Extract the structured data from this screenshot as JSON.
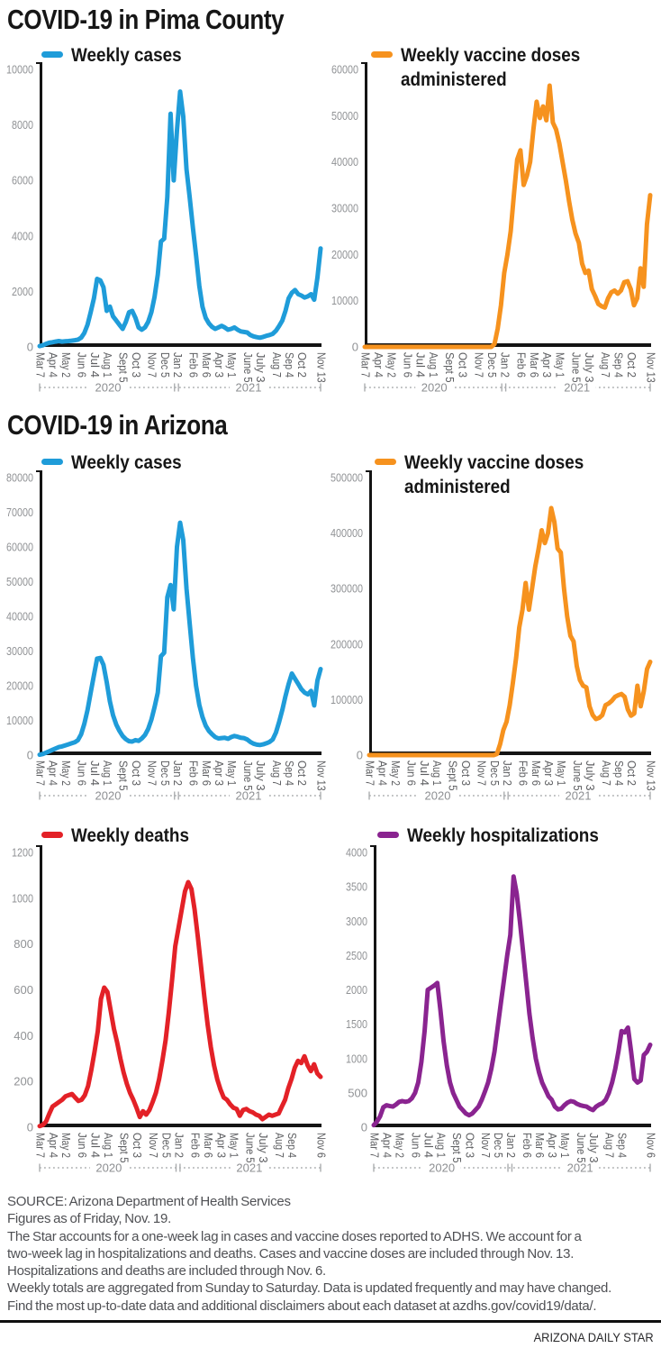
{
  "page": {
    "section1_title": "COVID-19 in Pima County",
    "section2_title": "COVID-19 in Arizona",
    "footer": {
      "source_line1": "SOURCE: Arizona Department of Health Services",
      "source_line2": "Figures as of Friday, Nov. 19.",
      "note1": [
        "The Star accounts for a one-week lag in cases and vaccine doses reported to ADHS. We account for a",
        "two-week lag in hospitalizations and deaths. Cases and vaccine doses are included through Nov. 13.",
        "Hospitalizations and deaths are included through Nov. 6."
      ],
      "note2": [
        "Weekly totals are aggregated from Sunday to Saturday. Data is updated frequently and may have changed.",
        "Find the most up-to-date data and additional disclaimers about each dataset at azdhs.gov/covid19/data/."
      ],
      "credit": "ARIZONA DAILY STAR"
    }
  },
  "chart_data": [
    {
      "id": "pima-cases",
      "type": "line",
      "region": "Pima County",
      "legend": "Weekly cases",
      "color": "#1f9cd9",
      "ylim": [
        0,
        10000
      ],
      "yticks": [
        0,
        2000,
        4000,
        6000,
        8000,
        10000
      ],
      "x_start": "Mar 7 2020",
      "x_end": "Nov 13 2021",
      "xtick_idx": [
        0,
        4,
        8,
        13,
        17,
        21,
        26,
        30,
        35,
        39,
        43,
        48,
        52,
        56,
        60,
        65,
        69,
        74,
        78,
        82,
        88
      ],
      "xtick_labels": [
        "Mar 7",
        "Apr 4",
        "May 2",
        "Jun 6",
        "Jul 4",
        "Aug 1",
        "Sept 5",
        "Oct 3",
        "Nov 7",
        "Dec 5",
        "Jan 2",
        "Feb 6",
        "Mar 6",
        "Apr 3",
        "May 1",
        "June 5",
        "July 3",
        "Aug 7",
        "Sep 4",
        "Oct 2",
        "Nov 13"
      ],
      "year_labels": [
        "2020",
        "2021"
      ],
      "year_split_week": 42.86,
      "values": [
        30,
        60,
        110,
        150,
        170,
        190,
        210,
        190,
        200,
        210,
        225,
        240,
        260,
        330,
        500,
        800,
        1250,
        1750,
        2450,
        2400,
        2150,
        1300,
        1450,
        1100,
        950,
        800,
        650,
        900,
        1250,
        1300,
        1050,
        700,
        620,
        700,
        900,
        1250,
        1800,
        2600,
        3800,
        3900,
        5400,
        8400,
        6000,
        7800,
        9200,
        8300,
        6400,
        5400,
        4300,
        3300,
        2200,
        1450,
        1050,
        850,
        720,
        650,
        700,
        760,
        700,
        620,
        650,
        700,
        620,
        560,
        540,
        520,
        430,
        380,
        350,
        330,
        360,
        400,
        430,
        470,
        580,
        750,
        950,
        1300,
        1750,
        1950,
        2050,
        1900,
        1850,
        1780,
        1820,
        1900,
        1700,
        2500,
        3550
      ]
    },
    {
      "id": "pima-vaccines",
      "type": "line",
      "region": "Pima County",
      "legend": [
        "Weekly vaccine doses",
        "administered"
      ],
      "color": "#f6921e",
      "ylim": [
        0,
        60000
      ],
      "yticks": [
        0,
        10000,
        20000,
        30000,
        40000,
        50000,
        60000
      ],
      "x_start": "Mar 7 2020",
      "x_end": "Nov 13 2021",
      "xtick_idx": [
        0,
        4,
        8,
        13,
        17,
        21,
        26,
        30,
        35,
        39,
        43,
        48,
        52,
        56,
        60,
        65,
        69,
        74,
        78,
        82,
        88
      ],
      "xtick_labels": [
        "Mar 7",
        "Apr 4",
        "May 2",
        "Jun 6",
        "Jul 4",
        "Aug 1",
        "Sept 5",
        "Oct 3",
        "Nov 7",
        "Dec 5",
        "Jan 2",
        "Feb 6",
        "Mar 6",
        "Apr 3",
        "May 1",
        "June 5",
        "July 3",
        "Aug 7",
        "Sep 4",
        "Oct 2",
        "Nov 13"
      ],
      "year_labels": [
        "2020",
        "2021"
      ],
      "year_split_week": 42.86,
      "values": [
        0,
        0,
        0,
        0,
        0,
        0,
        0,
        0,
        0,
        0,
        0,
        0,
        0,
        0,
        0,
        0,
        0,
        0,
        0,
        0,
        0,
        0,
        0,
        0,
        0,
        0,
        0,
        0,
        0,
        0,
        0,
        0,
        0,
        0,
        0,
        0,
        0,
        0,
        0,
        0,
        600,
        4000,
        9000,
        16000,
        20000,
        25000,
        33000,
        40500,
        42500,
        35000,
        37000,
        40000,
        47000,
        53000,
        49500,
        52000,
        49000,
        56500,
        48500,
        47000,
        44000,
        40000,
        36000,
        31500,
        27500,
        24500,
        22500,
        18000,
        16000,
        16500,
        12500,
        11000,
        9300,
        8800,
        8500,
        10500,
        11800,
        12200,
        11500,
        12200,
        14000,
        14200,
        12500,
        9000,
        10500,
        17000,
        13000,
        26500,
        32800
      ]
    },
    {
      "id": "az-cases",
      "type": "line",
      "region": "Arizona",
      "legend": "Weekly cases",
      "color": "#1f9cd9",
      "ylim": [
        0,
        80000
      ],
      "yticks": [
        0,
        10000,
        20000,
        30000,
        40000,
        50000,
        60000,
        70000,
        80000
      ],
      "x_start": "Mar 7 2020",
      "x_end": "Nov 13 2021",
      "xtick_idx": [
        0,
        4,
        8,
        13,
        17,
        21,
        26,
        30,
        35,
        39,
        43,
        48,
        52,
        56,
        60,
        65,
        69,
        74,
        78,
        82,
        88
      ],
      "xtick_labels": [
        "Mar 7",
        "Apr 4",
        "May 2",
        "Jun 6",
        "Jul 4",
        "Aug 1",
        "Sept 5",
        "Oct 3",
        "Nov 7",
        "Dec 5",
        "Jan 2",
        "Feb 6",
        "Mar 6",
        "Apr 3",
        "May 1",
        "June 5",
        "July 3",
        "Aug 7",
        "Sep 4",
        "Oct 2",
        "Nov 13"
      ],
      "year_labels": [
        "2020",
        "2021"
      ],
      "year_split_week": 42.86,
      "values": [
        100,
        300,
        700,
        1100,
        1500,
        1900,
        2300,
        2500,
        2800,
        3100,
        3400,
        3700,
        4300,
        6000,
        9000,
        13000,
        18000,
        23000,
        27800,
        28000,
        26000,
        21000,
        15500,
        11500,
        8800,
        7000,
        5500,
        4600,
        4000,
        3900,
        4300,
        4100,
        4800,
        5800,
        7500,
        10200,
        13800,
        18000,
        28500,
        29500,
        45500,
        49000,
        42000,
        60000,
        67000,
        62000,
        48000,
        38000,
        28000,
        20000,
        14500,
        11000,
        8500,
        7000,
        6000,
        5200,
        4800,
        4900,
        5000,
        4700,
        5200,
        5500,
        5300,
        5000,
        4900,
        4500,
        3800,
        3300,
        3000,
        2900,
        3100,
        3400,
        3800,
        4500,
        6500,
        9500,
        13000,
        17000,
        20500,
        23500,
        22000,
        20500,
        19000,
        18000,
        17500,
        18500,
        14300,
        21500,
        24800
      ]
    },
    {
      "id": "az-vaccines",
      "type": "line",
      "region": "Arizona",
      "legend": [
        "Weekly vaccine doses",
        "administered"
      ],
      "color": "#f6921e",
      "ylim": [
        0,
        500000
      ],
      "yticks": [
        0,
        100000,
        200000,
        300000,
        400000,
        500000
      ],
      "x_start": "Mar 7 2020",
      "x_end": "Nov 13 2021",
      "xtick_idx": [
        0,
        4,
        8,
        13,
        17,
        21,
        26,
        30,
        35,
        39,
        43,
        48,
        52,
        56,
        60,
        65,
        69,
        74,
        78,
        82,
        88
      ],
      "xtick_labels": [
        "Mar 7",
        "Apr 4",
        "May 2",
        "Jun 6",
        "Jul 4",
        "Aug 1",
        "Sept 5",
        "Oct 3",
        "Nov 7",
        "Dec 5",
        "Jan 2",
        "Feb 6",
        "Mar 6",
        "Apr 3",
        "May 1",
        "June 5",
        "July 3",
        "Aug 7",
        "Sep 4",
        "Oct 2",
        "Nov 13"
      ],
      "year_labels": [
        "2020",
        "2021"
      ],
      "year_split_week": 42.86,
      "values": [
        0,
        0,
        0,
        0,
        0,
        0,
        0,
        0,
        0,
        0,
        0,
        0,
        0,
        0,
        0,
        0,
        0,
        0,
        0,
        0,
        0,
        0,
        0,
        0,
        0,
        0,
        0,
        0,
        0,
        0,
        0,
        0,
        0,
        0,
        0,
        0,
        0,
        0,
        0,
        0,
        2000,
        20000,
        45000,
        60000,
        90000,
        130000,
        175000,
        230000,
        262000,
        310000,
        262000,
        300000,
        340000,
        370000,
        405000,
        382000,
        400000,
        445000,
        420000,
        372000,
        365000,
        300000,
        250000,
        215000,
        205000,
        160000,
        135000,
        125000,
        122000,
        88000,
        72000,
        65000,
        67000,
        72000,
        90000,
        93000,
        98000,
        105000,
        108000,
        110000,
        105000,
        82000,
        71000,
        75000,
        125000,
        88000,
        115000,
        155000,
        168000
      ]
    },
    {
      "id": "az-deaths",
      "type": "line",
      "region": "Arizona",
      "legend": "Weekly deaths",
      "color": "#e32127",
      "ylim": [
        0,
        1200
      ],
      "yticks": [
        0,
        200,
        400,
        600,
        800,
        1000,
        1200
      ],
      "x_start": "Mar 7 2020",
      "x_end": "Nov 6 2021",
      "xtick_idx": [
        0,
        4,
        8,
        13,
        17,
        21,
        26,
        30,
        35,
        39,
        43,
        48,
        52,
        56,
        60,
        65,
        69,
        74,
        78,
        87
      ],
      "xtick_labels": [
        "Mar 7",
        "Apr 4",
        "May 2",
        "Jun 6",
        "Jul 4",
        "Aug 1",
        "Sept 5",
        "Oct 3",
        "Nov 7",
        "Dec 5",
        "Jan 2",
        "Feb 6",
        "Mar 6",
        "Apr 3",
        "May 1",
        "June 5",
        "July 3",
        "Aug 7",
        "Sep 4",
        "Nov 6"
      ],
      "year_labels": [
        "2020",
        "2021"
      ],
      "year_split_week": 42.86,
      "values": [
        5,
        10,
        25,
        60,
        90,
        100,
        110,
        120,
        135,
        140,
        145,
        130,
        115,
        120,
        140,
        180,
        250,
        330,
        420,
        560,
        610,
        590,
        510,
        430,
        370,
        300,
        240,
        190,
        150,
        120,
        85,
        45,
        70,
        55,
        75,
        110,
        150,
        210,
        290,
        380,
        500,
        640,
        790,
        870,
        950,
        1030,
        1070,
        1040,
        950,
        830,
        700,
        570,
        450,
        350,
        270,
        210,
        165,
        130,
        120,
        100,
        85,
        80,
        50,
        75,
        80,
        70,
        65,
        55,
        50,
        35,
        45,
        55,
        50,
        55,
        60,
        90,
        120,
        170,
        210,
        260,
        290,
        280,
        310,
        270,
        245,
        275,
        235,
        220
      ]
    },
    {
      "id": "az-hospitalizations",
      "type": "line",
      "region": "Arizona",
      "legend": "Weekly hospitalizations",
      "color": "#8a2490",
      "ylim": [
        0,
        4000
      ],
      "yticks": [
        0,
        500,
        1000,
        1500,
        2000,
        2500,
        3000,
        3500,
        4000
      ],
      "x_start": "Mar 7 2020",
      "x_end": "Nov 6 2021",
      "xtick_idx": [
        0,
        4,
        8,
        13,
        17,
        21,
        26,
        30,
        35,
        39,
        43,
        48,
        52,
        56,
        60,
        65,
        69,
        74,
        78,
        87
      ],
      "xtick_labels": [
        "Mar 7",
        "Apr 4",
        "May 2",
        "Jun 6",
        "Jul 4",
        "Aug 1",
        "Sept 5",
        "Oct 3",
        "Nov 7",
        "Dec 5",
        "Jan 2",
        "Feb 6",
        "Mar 6",
        "Apr 3",
        "May 1",
        "June 5",
        "July 3",
        "Aug 7",
        "Sep 4",
        "Nov 6"
      ],
      "year_labels": [
        "2020",
        "2021"
      ],
      "year_split_week": 42.86,
      "values": [
        30,
        80,
        160,
        290,
        320,
        310,
        300,
        330,
        370,
        380,
        370,
        380,
        420,
        500,
        650,
        950,
        1400,
        2000,
        2030,
        2060,
        2100,
        1700,
        1250,
        900,
        650,
        500,
        400,
        300,
        250,
        200,
        175,
        200,
        250,
        300,
        400,
        520,
        650,
        850,
        1100,
        1450,
        1800,
        2150,
        2500,
        2800,
        3650,
        3400,
        3000,
        2550,
        2100,
        1650,
        1300,
        1000,
        800,
        650,
        550,
        450,
        400,
        300,
        260,
        270,
        320,
        360,
        380,
        370,
        340,
        320,
        310,
        300,
        270,
        250,
        300,
        330,
        350,
        400,
        500,
        650,
        850,
        1100,
        1400,
        1380,
        1450,
        1100,
        700,
        650,
        680,
        1050,
        1100,
        1200
      ]
    }
  ]
}
